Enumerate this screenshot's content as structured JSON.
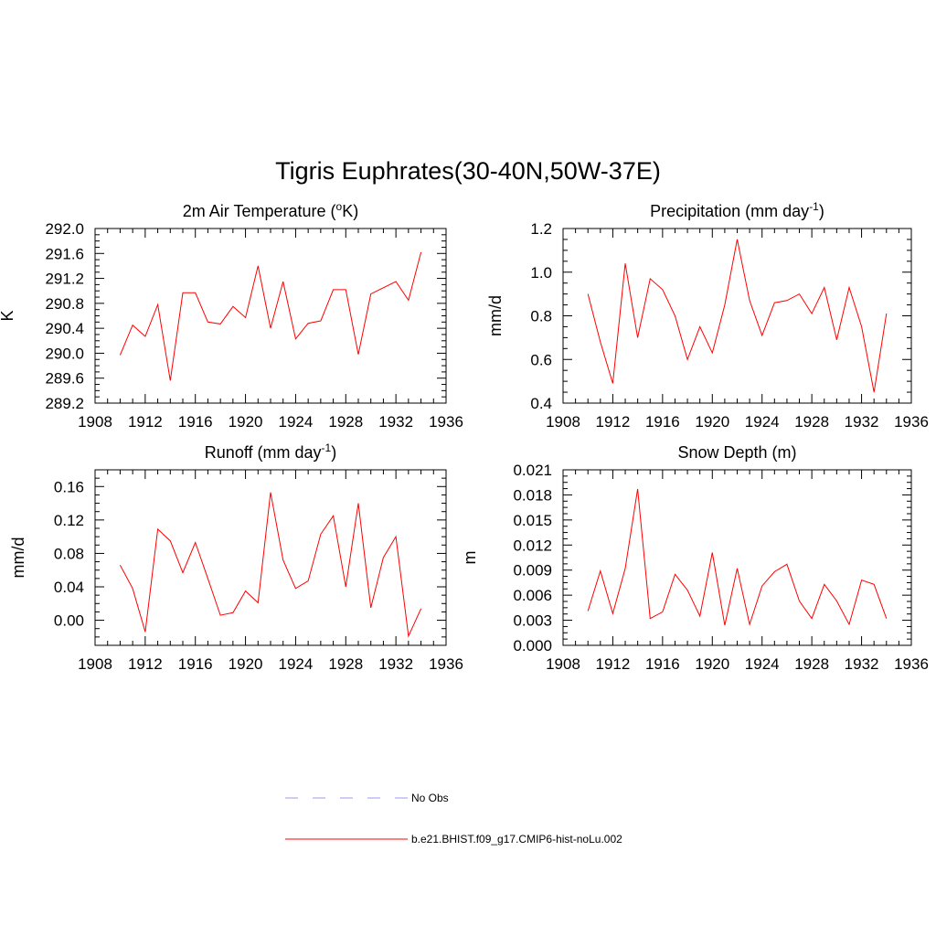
{
  "page": {
    "title": "Tigris Euphrates(30-40N,50W-37E)"
  },
  "legend": [
    {
      "label": "No Obs",
      "color": "#9999ee",
      "dash": true
    },
    {
      "label": "b.e21.BHIST.f09_g17.CMIP6-hist-noLu.002",
      "color": "#ff0000",
      "dash": false
    }
  ],
  "chart_data": [
    {
      "type": "line",
      "title": "2m Air Temperature (",
      "title_sup": "o",
      "title_after": "K)",
      "ylabel": "K",
      "xlim": [
        1908,
        1936
      ],
      "ylim": [
        289.2,
        292.0
      ],
      "xticks": [
        1908,
        1912,
        1916,
        1920,
        1924,
        1928,
        1932,
        1936
      ],
      "xtick_labels": [
        "1908",
        "1912",
        "1916",
        "1920",
        "1924",
        "1928",
        "1932",
        "1936"
      ],
      "yticks": [
        289.2,
        289.6,
        290.0,
        290.4,
        290.8,
        291.2,
        291.6,
        292.0
      ],
      "ytick_labels": [
        "289.2",
        "289.6",
        "290.0",
        "290.4",
        "290.8",
        "291.2",
        "291.6",
        "292.0"
      ],
      "series": [
        {
          "color": "#ff0000",
          "x": [
            1910,
            1911,
            1912,
            1913,
            1914,
            1915,
            1916,
            1917,
            1918,
            1919,
            1920,
            1921,
            1922,
            1923,
            1924,
            1925,
            1926,
            1927,
            1928,
            1929,
            1930,
            1932,
            1933,
            1934
          ],
          "y": [
            289.97,
            290.45,
            290.27,
            290.78,
            289.56,
            290.97,
            290.97,
            290.5,
            290.47,
            290.75,
            290.57,
            291.4,
            290.4,
            291.15,
            290.23,
            290.48,
            290.52,
            291.02,
            291.02,
            289.98,
            290.95,
            291.15,
            290.85,
            291.62
          ]
        }
      ]
    },
    {
      "type": "line",
      "title": "Precipitation (mm day",
      "title_sup": "-1",
      "title_after": ")",
      "ylabel": "mm/d",
      "xlim": [
        1908,
        1936
      ],
      "ylim": [
        0.4,
        1.2
      ],
      "xticks": [
        1908,
        1912,
        1916,
        1920,
        1924,
        1928,
        1932,
        1936
      ],
      "xtick_labels": [
        "1908",
        "1912",
        "1916",
        "1920",
        "1924",
        "1928",
        "1932",
        "1936"
      ],
      "yticks": [
        0.4,
        0.6,
        0.8,
        1.0,
        1.2
      ],
      "ytick_labels": [
        "0.4",
        "0.6",
        "0.8",
        "1.0",
        "1.2"
      ],
      "series": [
        {
          "color": "#ff0000",
          "x": [
            1910,
            1911,
            1912,
            1913,
            1914,
            1915,
            1916,
            1917,
            1918,
            1919,
            1920,
            1921,
            1922,
            1923,
            1924,
            1925,
            1926,
            1927,
            1928,
            1929,
            1930,
            1931,
            1932,
            1933,
            1934
          ],
          "y": [
            0.9,
            0.68,
            0.49,
            1.04,
            0.7,
            0.97,
            0.92,
            0.8,
            0.6,
            0.75,
            0.63,
            0.85,
            1.15,
            0.87,
            0.71,
            0.86,
            0.87,
            0.9,
            0.81,
            0.93,
            0.69,
            0.93,
            0.75,
            0.45,
            0.81
          ]
        }
      ]
    },
    {
      "type": "line",
      "title": "Runoff (mm day",
      "title_sup": "-1",
      "title_after": ")",
      "ylabel": "mm/d",
      "xlim": [
        1908,
        1936
      ],
      "ylim": [
        -0.03,
        0.18
      ],
      "xticks": [
        1908,
        1912,
        1916,
        1920,
        1924,
        1928,
        1932,
        1936
      ],
      "xtick_labels": [
        "1908",
        "1912",
        "1916",
        "1920",
        "1924",
        "1928",
        "1932",
        "1936"
      ],
      "yticks": [
        0.0,
        0.04,
        0.08,
        0.12,
        0.16
      ],
      "ytick_labels": [
        "0.00",
        "0.04",
        "0.08",
        "0.12",
        "0.16"
      ],
      "series": [
        {
          "color": "#ff0000",
          "x": [
            1910,
            1911,
            1912,
            1913,
            1914,
            1915,
            1916,
            1917,
            1918,
            1919,
            1920,
            1921,
            1922,
            1923,
            1924,
            1925,
            1926,
            1927,
            1928,
            1929,
            1930,
            1931,
            1932,
            1933,
            1934
          ],
          "y": [
            0.066,
            0.038,
            -0.014,
            0.109,
            0.095,
            0.057,
            0.093,
            0.05,
            0.006,
            0.009,
            0.035,
            0.021,
            0.153,
            0.072,
            0.038,
            0.047,
            0.103,
            0.125,
            0.04,
            0.14,
            0.015,
            0.075,
            0.1,
            -0.019,
            0.014
          ]
        }
      ]
    },
    {
      "type": "line",
      "title": "Snow Depth (m)",
      "title_sup": "",
      "title_after": "",
      "ylabel": "m",
      "xlim": [
        1908,
        1936
      ],
      "ylim": [
        0.0,
        0.021
      ],
      "xticks": [
        1908,
        1912,
        1916,
        1920,
        1924,
        1928,
        1932,
        1936
      ],
      "xtick_labels": [
        "1908",
        "1912",
        "1916",
        "1920",
        "1924",
        "1928",
        "1932",
        "1936"
      ],
      "yticks": [
        0.0,
        0.003,
        0.006,
        0.009,
        0.012,
        0.015,
        0.018,
        0.021
      ],
      "ytick_labels": [
        "0.000",
        "0.003",
        "0.006",
        "0.009",
        "0.012",
        "0.015",
        "0.018",
        "0.021"
      ],
      "series": [
        {
          "color": "#ff0000",
          "x": [
            1910,
            1911,
            1912,
            1913,
            1914,
            1915,
            1916,
            1917,
            1918,
            1919,
            1920,
            1921,
            1922,
            1923,
            1924,
            1925,
            1926,
            1927,
            1928,
            1929,
            1930,
            1931,
            1932,
            1933,
            1934
          ],
          "y": [
            0.0041,
            0.0089,
            0.0038,
            0.0092,
            0.0187,
            0.0032,
            0.004,
            0.0085,
            0.0066,
            0.0035,
            0.0111,
            0.0024,
            0.0092,
            0.0025,
            0.0071,
            0.0088,
            0.0097,
            0.0053,
            0.0032,
            0.0073,
            0.0053,
            0.0025,
            0.0078,
            0.0073,
            0.0032
          ]
        }
      ]
    }
  ]
}
